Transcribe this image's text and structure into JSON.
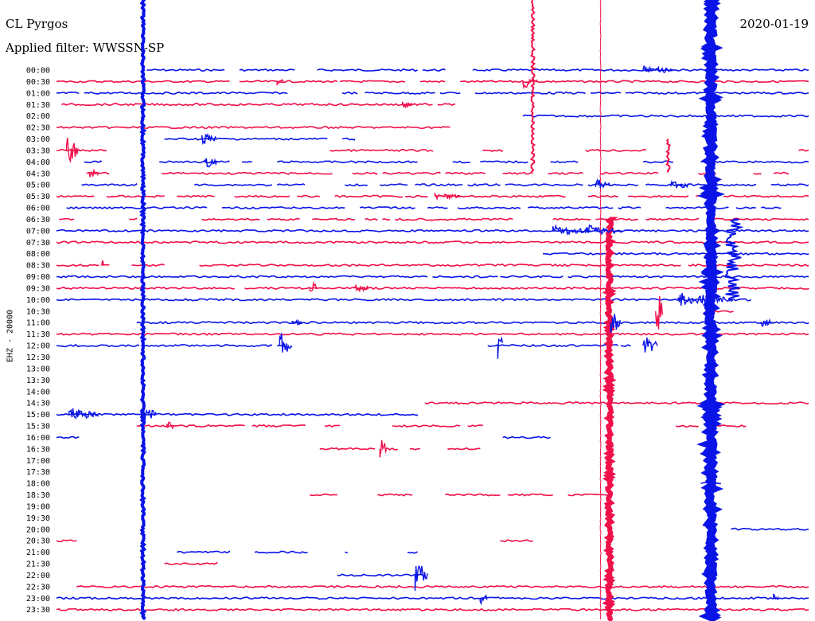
{
  "header": {
    "station": "CL Pyrgos",
    "filter": "Applied filter: WWSSN-SP",
    "date": "2020-01-19",
    "channel": "EHZ - 20000"
  },
  "colors": {
    "even_row": "#0a14e6",
    "odd_row": "#f0104a",
    "background": "#ffffff"
  },
  "chart_data": {
    "type": "line",
    "title": "CL Pyrgos",
    "subtitle": "Applied filter: WWSSN-SP",
    "date": "2020-01-19",
    "ylabel": "EHZ - 20000",
    "xlabel": "",
    "row_labels": [
      "00:00",
      "00:30",
      "01:00",
      "01:30",
      "02:00",
      "02:30",
      "03:00",
      "03:30",
      "04:00",
      "04:30",
      "05:00",
      "05:30",
      "06:00",
      "06:30",
      "07:00",
      "07:30",
      "08:00",
      "08:30",
      "09:00",
      "09:30",
      "10:00",
      "10:30",
      "11:00",
      "11:30",
      "12:00",
      "12:30",
      "13:00",
      "13:30",
      "14:00",
      "14:30",
      "15:00",
      "15:30",
      "16:00",
      "16:30",
      "17:00",
      "17:30",
      "18:00",
      "18:30",
      "19:00",
      "19:30",
      "20:00",
      "20:30",
      "21:00",
      "21:30",
      "22:00",
      "22:30",
      "23:00",
      "23:30"
    ],
    "x_unit": "minutes within 30-minute row",
    "x_range": [
      0,
      30
    ],
    "segments": [
      [
        [
          3.6,
          6.7
        ],
        [
          7.3,
          9.5
        ],
        [
          10.4,
          14.4
        ],
        [
          14.6,
          15.5
        ],
        [
          16.6,
          30
        ]
      ],
      [
        [
          0,
          6.9
        ],
        [
          7.3,
          11.2
        ],
        [
          11.3,
          13.9
        ],
        [
          14.5,
          15.5
        ],
        [
          16.1,
          30
        ]
      ],
      [
        [
          0,
          0.9
        ],
        [
          1.1,
          9.2
        ],
        [
          11.4,
          12.0
        ],
        [
          12.3,
          15.1
        ],
        [
          15.3,
          16.1
        ],
        [
          16.7,
          21.1
        ],
        [
          21.3,
          22.5
        ],
        [
          22.7,
          30
        ]
      ],
      [
        [
          0.2,
          15.0
        ],
        [
          15.2,
          15.9
        ]
      ],
      [
        [
          18.6,
          30
        ]
      ],
      [
        [
          0,
          15.7
        ]
      ],
      [
        [
          4.3,
          10.8
        ],
        [
          11.4,
          11.9
        ]
      ],
      [
        [
          0,
          2.0
        ],
        [
          10.9,
          15.0
        ],
        [
          17.0,
          17.8
        ],
        [
          21.1,
          23.5
        ],
        [
          29.6,
          30
        ]
      ],
      [
        [
          1.1,
          1.8
        ],
        [
          4.1,
          6.9
        ],
        [
          7.4,
          7.8
        ],
        [
          8.8,
          14.4
        ],
        [
          15.8,
          16.5
        ],
        [
          16.9,
          18.8
        ],
        [
          19.7,
          20.8
        ],
        [
          23.4,
          24.6
        ],
        [
          25.7,
          30
        ]
      ],
      [
        [
          1.2,
          2.1
        ],
        [
          4.2,
          11.0
        ],
        [
          11.8,
          12.8
        ],
        [
          13.0,
          15.3
        ],
        [
          15.5,
          17.1
        ],
        [
          17.8,
          19.0
        ],
        [
          19.6,
          21.0
        ],
        [
          21.7,
          24.0
        ],
        [
          25.6,
          26.3
        ],
        [
          27.8,
          28.1
        ],
        [
          28.6,
          29.2
        ]
      ],
      [
        [
          1.0,
          3.2
        ],
        [
          5.5,
          8.6
        ],
        [
          8.8,
          9.9
        ],
        [
          11.5,
          12.4
        ],
        [
          12.9,
          14.0
        ],
        [
          14.3,
          16.2
        ],
        [
          16.4,
          17.7
        ],
        [
          17.9,
          21.0
        ],
        [
          21.2,
          23.2
        ],
        [
          23.5,
          27.9
        ],
        [
          28.5,
          30
        ]
      ],
      [
        [
          0,
          1.5
        ],
        [
          2.0,
          4.3
        ],
        [
          4.8,
          6.3
        ],
        [
          7.1,
          9.3
        ],
        [
          9.6,
          10.5
        ],
        [
          11.1,
          13.8
        ],
        [
          13.9,
          14.8
        ],
        [
          15.1,
          20.3
        ],
        [
          21.2,
          22.4
        ],
        [
          22.8,
          25.2
        ],
        [
          25.5,
          26.0
        ],
        [
          26.6,
          30
        ]
      ],
      [
        [
          0.4,
          6.0
        ],
        [
          6.6,
          11.5
        ],
        [
          12.1,
          14.3
        ],
        [
          14.8,
          15.6
        ],
        [
          16.0,
          18.5
        ],
        [
          18.8,
          22.2
        ],
        [
          22.4,
          23.3
        ],
        [
          24.3,
          26.8
        ],
        [
          27.1,
          27.9
        ],
        [
          28.1,
          28.9
        ]
      ],
      [
        [
          0.1,
          0.7
        ],
        [
          2.9,
          3.2
        ],
        [
          5.8,
          8.1
        ],
        [
          8.4,
          9.7
        ],
        [
          10.2,
          11.9
        ],
        [
          12.3,
          12.8
        ],
        [
          13.0,
          13.3
        ],
        [
          13.5,
          18.2
        ],
        [
          19.8,
          21.3
        ],
        [
          21.5,
          23.2
        ],
        [
          23.5,
          25.6
        ],
        [
          26.0,
          30
        ]
      ],
      [
        [
          0,
          30
        ]
      ],
      [
        [
          0,
          30
        ]
      ],
      [
        [
          19.4,
          30
        ]
      ],
      [
        [
          0,
          1.7
        ],
        [
          1.8,
          2.1
        ],
        [
          3.0,
          4.3
        ],
        [
          5.7,
          24.9
        ],
        [
          25.2,
          30
        ]
      ],
      [
        [
          0,
          14.8
        ],
        [
          15.0,
          17.6
        ],
        [
          17.7,
          20.2
        ],
        [
          20.4,
          30
        ]
      ],
      [
        [
          0,
          7.1
        ],
        [
          7.5,
          30
        ]
      ],
      [
        [
          0,
          26.0
        ],
        [
          26.8,
          27.7
        ]
      ],
      [
        [
          26.2,
          27.0
        ]
      ],
      [
        [
          3.2,
          30
        ]
      ],
      [
        [
          0,
          30
        ]
      ],
      [
        [
          0,
          3.3
        ],
        [
          3.5,
          8.6
        ],
        [
          8.8,
          9.1
        ],
        [
          17.2,
          22.4
        ],
        [
          22.5,
          22.9
        ]
      ],
      [],
      [],
      [],
      [],
      [
        [
          14.7,
          30
        ]
      ],
      [
        [
          0,
          14.4
        ]
      ],
      [
        [
          3.2,
          7.5
        ],
        [
          7.8,
          9.9
        ],
        [
          10.7,
          11.3
        ],
        [
          13.4,
          16.1
        ],
        [
          16.4,
          17.0
        ],
        [
          24.7,
          25.6
        ],
        [
          26.0,
          27.5
        ]
      ],
      [
        [
          0,
          0.9
        ],
        [
          17.8,
          19.7
        ]
      ],
      [
        [
          10.5,
          12.7
        ],
        [
          13.1,
          13.6
        ],
        [
          14.1,
          14.5
        ],
        [
          15.6,
          16.9
        ]
      ],
      [],
      [],
      [
        [
          25.7,
          26.5
        ]
      ],
      [
        [
          10.1,
          11.2
        ],
        [
          12.8,
          14.2
        ],
        [
          15.5,
          17.7
        ],
        [
          18.0,
          19.8
        ],
        [
          20.4,
          22.1
        ]
      ],
      [],
      [],
      [
        [
          26.9,
          30
        ]
      ],
      [
        [
          0,
          0.8
        ],
        [
          17.7,
          19.0
        ]
      ],
      [
        [
          4.8,
          6.9
        ],
        [
          7.9,
          10.0
        ],
        [
          11.5,
          11.6
        ],
        [
          14.0,
          14.4
        ]
      ],
      [
        [
          4.3,
          6.4
        ]
      ],
      [
        [
          11.2,
          14.6
        ]
      ],
      [
        [
          0.8,
          30
        ]
      ],
      [
        [
          0,
          30
        ]
      ],
      [
        [
          0,
          30
        ]
      ]
    ],
    "series": [
      {
        "name": "",
        "values": []
      }
    ],
    "grid": false,
    "legend": "none"
  }
}
